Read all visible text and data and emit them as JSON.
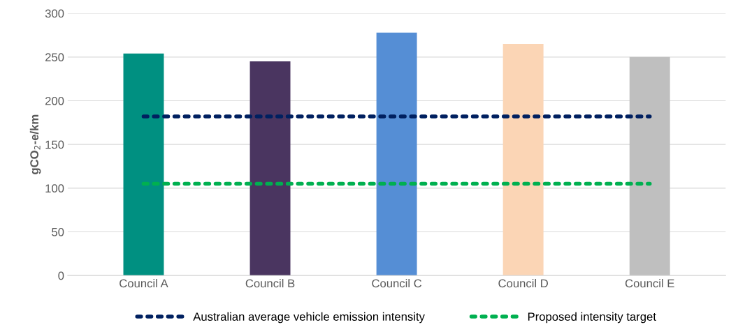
{
  "chart_data": {
    "type": "bar",
    "ylabel": "gCO$_{2}$-e/km",
    "categories": [
      "Council A",
      "Council B",
      "Council C",
      "Council D",
      "Council E"
    ],
    "series": [
      {
        "colors": [
          "#009081",
          "#4a3560",
          "#558ed5",
          "#fbd5b5",
          "#bfbfbf"
        ],
        "values": [
          254,
          245,
          278,
          265,
          250
        ]
      },
      {
        "type": "line",
        "name": "Australian average vehicle emission intensity",
        "color": "#002060",
        "line_style": "dotted",
        "values": [
          182,
          182,
          182,
          182,
          182
        ]
      },
      {
        "type": "line",
        "name": "Proposed intensity target",
        "color": "#00b050",
        "line_style": "dotted",
        "values": [
          105,
          105,
          105,
          105,
          105
        ]
      }
    ],
    "ylim": [
      0,
      300
    ],
    "yticks": [
      0,
      50,
      100,
      150,
      200,
      250,
      300
    ],
    "grid": "y",
    "legend": "bottom"
  }
}
